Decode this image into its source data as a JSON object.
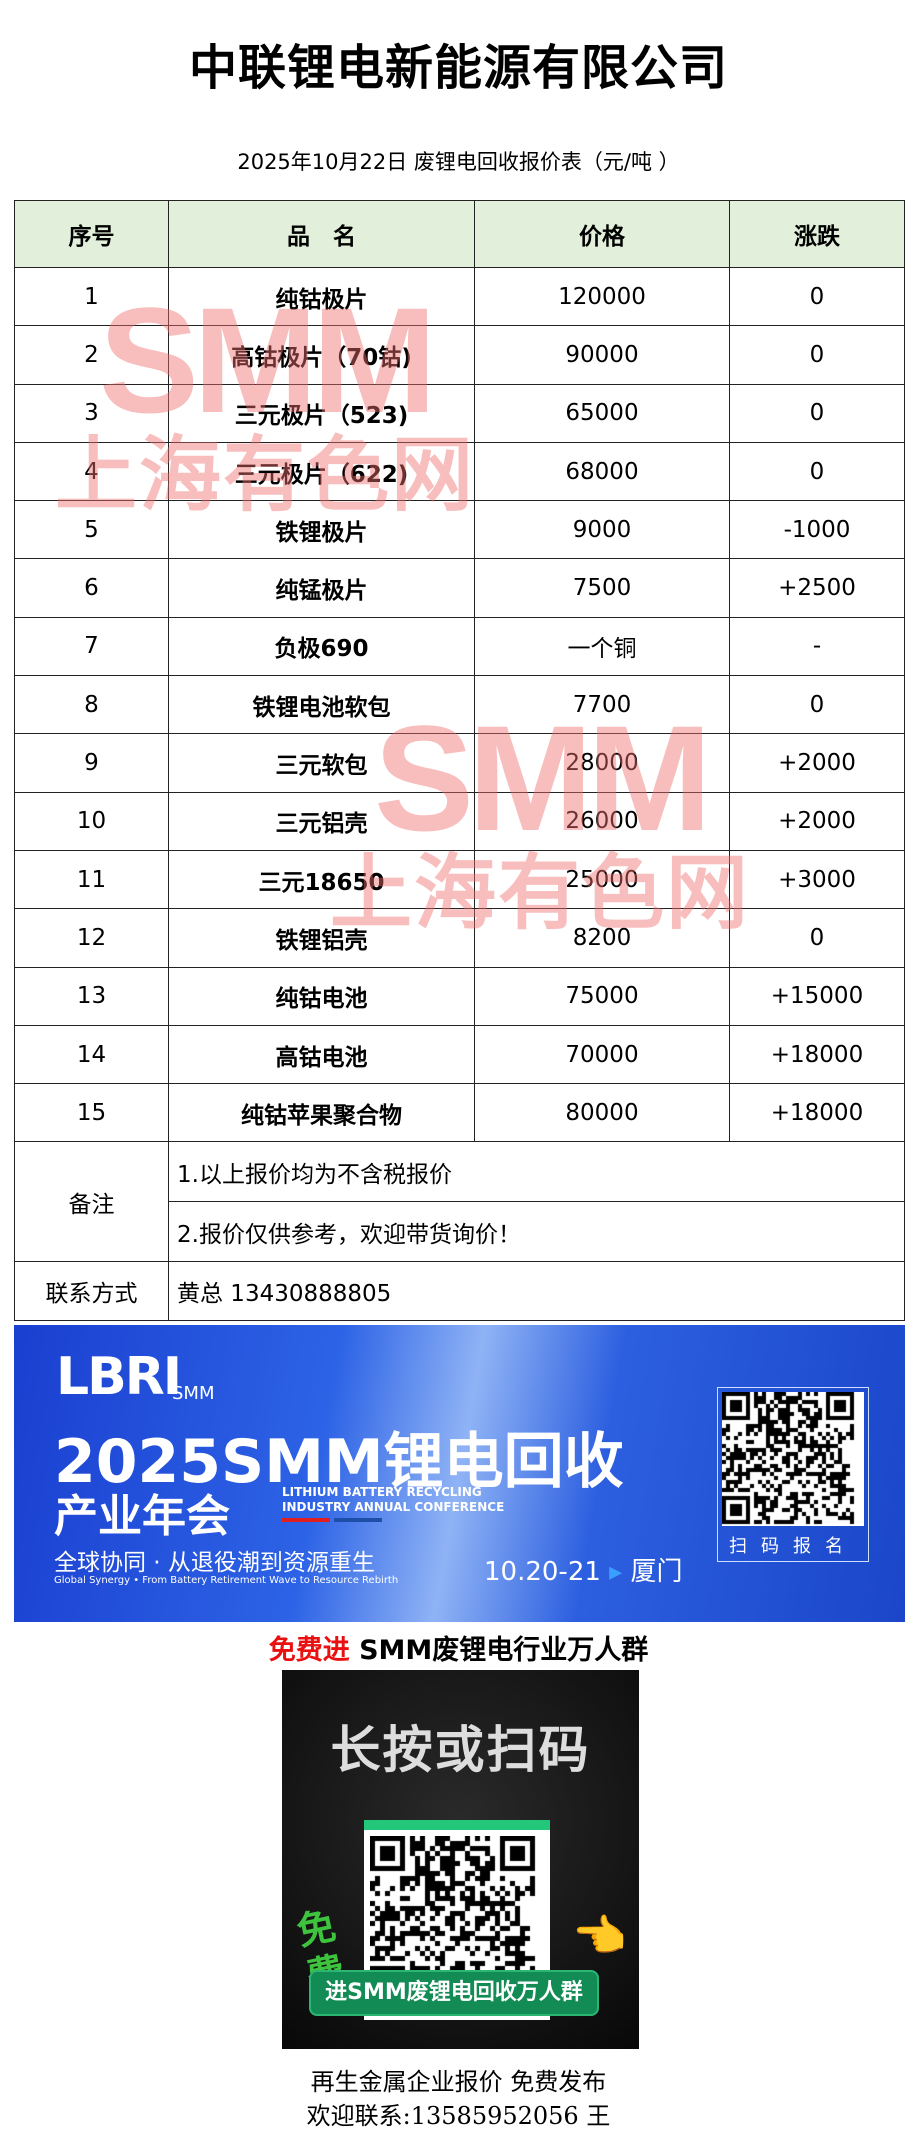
{
  "header": {
    "title": "中联锂电新能源有限公司",
    "subtitle": "2025年10月22日 废锂电回收报价表（元/吨 ）"
  },
  "table": {
    "columns": [
      "序号",
      "品　名",
      "价格",
      "涨跌"
    ],
    "rows": [
      [
        "1",
        "纯钴极片",
        "120000",
        "0"
      ],
      [
        "2",
        "高钴极片（70钴)",
        "90000",
        "0"
      ],
      [
        "3",
        "三元极片（523)",
        "65000",
        "0"
      ],
      [
        "4",
        "三元极片（622)",
        "68000",
        "0"
      ],
      [
        "5",
        "铁锂极片",
        "9000",
        "-1000"
      ],
      [
        "6",
        "纯锰极片",
        "7500",
        "+2500"
      ],
      [
        "7",
        "负极690",
        "一个铜",
        "-"
      ],
      [
        "8",
        "铁锂电池软包",
        "7700",
        "0"
      ],
      [
        "9",
        "三元软包",
        "28000",
        "+2000"
      ],
      [
        "10",
        "三元铝壳",
        "26000",
        "+2000"
      ],
      [
        "11",
        "三元18650",
        "25000",
        "+3000"
      ],
      [
        "12",
        "铁锂铝壳",
        "8200",
        "0"
      ],
      [
        "13",
        "纯钴电池",
        "75000",
        "+15000"
      ],
      [
        "14",
        "高钴电池",
        "70000",
        "+18000"
      ],
      [
        "15",
        "纯钴苹果聚合物",
        "80000",
        "+18000"
      ]
    ],
    "notes_label": "备注",
    "notes": [
      "1.以上报价均为不含税报价",
      "2.报价仅供参考，欢迎带货询价！"
    ],
    "contact_label": "联系方式",
    "contact": "黄总 13430888805"
  },
  "watermark": {
    "logo": "SMM",
    "name": "上海有色网"
  },
  "banner": {
    "logo": "LBRI",
    "logo_sub": "SMM",
    "title": "2025SMM锂电回收",
    "subtitle": "产业年会",
    "en_line1": "LITHIUM BATTERY RECYCLING",
    "en_line2": "INDUSTRY ANNUAL CONFERENCE",
    "slogan": "全球协同 · 从退役潮到资源重生",
    "slogan_en": "Global Synergy  •  From Battery Retirement Wave to Resource Rebirth",
    "date": "10.20-21",
    "city": "厦门",
    "scan": "扫码报名"
  },
  "join": {
    "free": "免费进",
    "text": " SMM废锂电行业万人群"
  },
  "qr_promo": {
    "heading": "长按或扫码",
    "free": "免费",
    "button": "进SMM废锂电回收万人群"
  },
  "footer": {
    "line1": "再生金属企业报价  免费发布",
    "line2": "欢迎联系:13585952056  王"
  }
}
